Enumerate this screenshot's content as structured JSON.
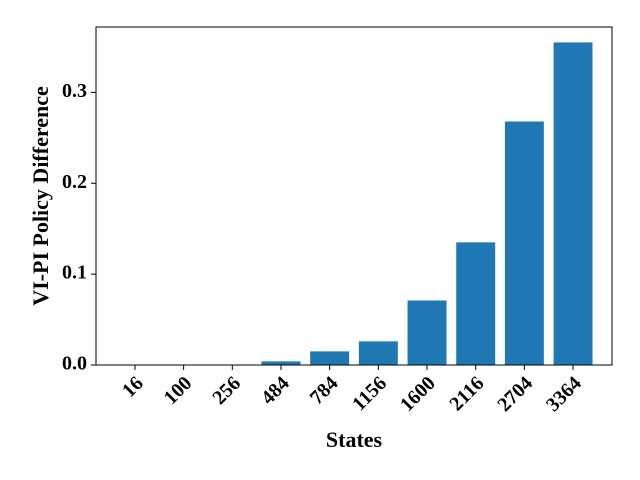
{
  "chart_data": {
    "type": "bar",
    "title": "",
    "xlabel": "States",
    "ylabel": "VI-PI Policy Difference",
    "categories": [
      "16",
      "100",
      "256",
      "484",
      "784",
      "1156",
      "1600",
      "2116",
      "2704",
      "3364"
    ],
    "values": [
      0.0,
      0.0,
      0.0,
      0.004,
      0.015,
      0.026,
      0.071,
      0.135,
      0.268,
      0.355
    ],
    "ylim": [
      0,
      0.372
    ],
    "yticks": [
      0.0,
      0.1,
      0.2,
      0.3
    ],
    "ytick_labels": [
      "0.0",
      "0.1",
      "0.2",
      "0.3"
    ],
    "grid": false,
    "legend": "none",
    "bar_color": "#1f77b4"
  }
}
